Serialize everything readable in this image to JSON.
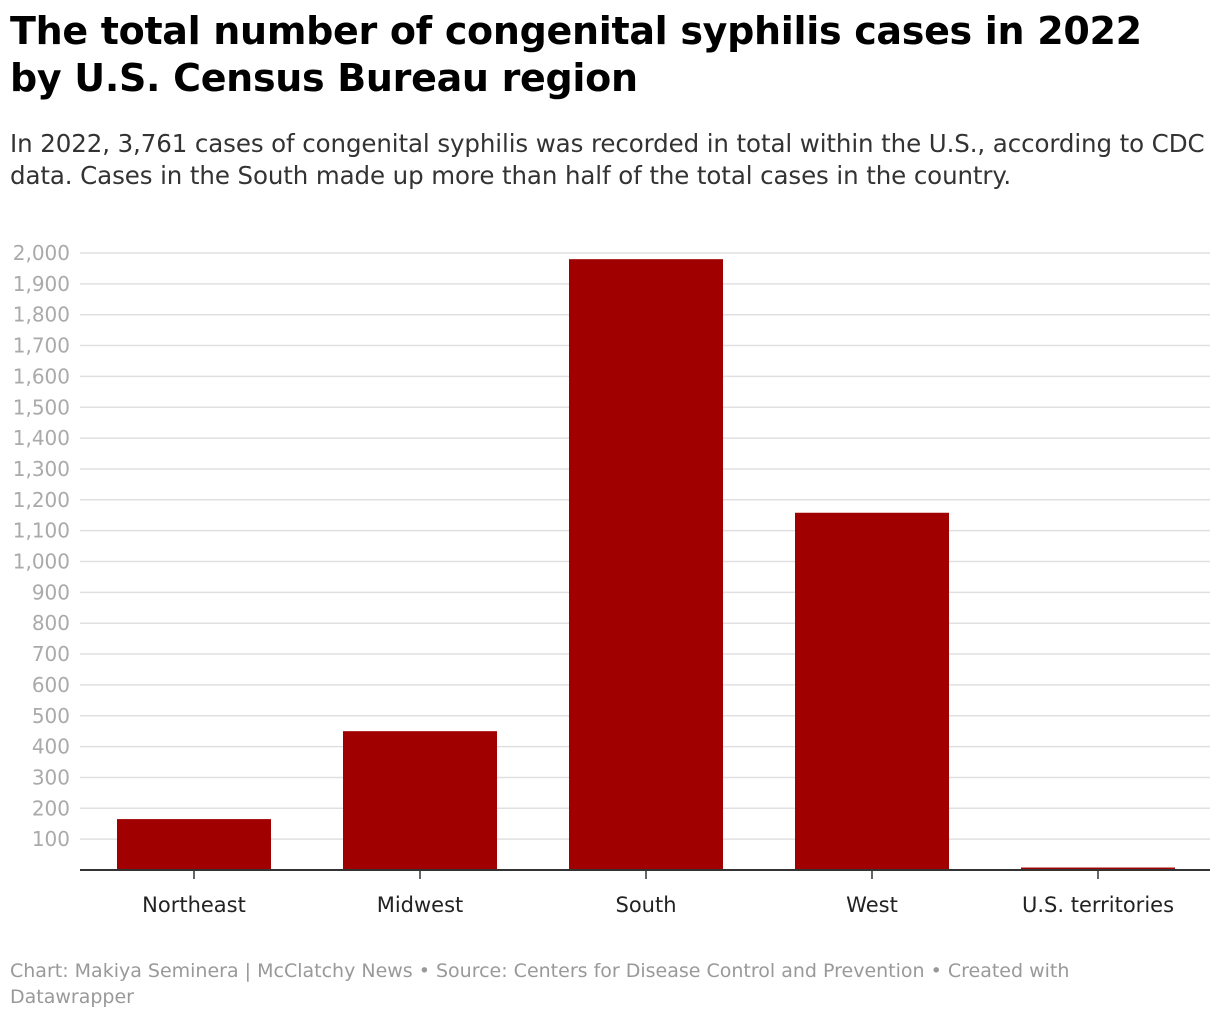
{
  "header": {
    "title": "The total number of congenital syphilis cases in 2022 by U.S. Census Bureau region",
    "subtitle": "In 2022, 3,761 cases of congenital syphilis was recorded in total within the U.S., according to CDC data. Cases in the South made up more than half of the total cases in the country."
  },
  "footer": {
    "credit": "Chart: Makiya Seminera | McClatchy News • Source: Centers for Disease Control and Prevention • Created with Datawrapper"
  },
  "colors": {
    "bar": "#a10000",
    "grid": "#e0e0e0",
    "axis": "#333333",
    "tick_text": "#aaaaaa",
    "category_text": "#222222"
  },
  "chart_data": {
    "type": "bar",
    "title": "The total number of congenital syphilis cases in 2022 by U.S. Census Bureau region",
    "xlabel": "",
    "ylabel": "",
    "categories": [
      "Northeast",
      "Midwest",
      "South",
      "West",
      "U.S. territories"
    ],
    "values": [
      165,
      450,
      1980,
      1158,
      8
    ],
    "ylim": [
      0,
      2000
    ],
    "yticks": [
      100,
      200,
      300,
      400,
      500,
      600,
      700,
      800,
      900,
      1000,
      1100,
      1200,
      1300,
      1400,
      1500,
      1600,
      1700,
      1800,
      1900,
      2000
    ],
    "ytick_labels": [
      "100",
      "200",
      "300",
      "400",
      "500",
      "600",
      "700",
      "800",
      "900",
      "1,000",
      "1,100",
      "1,200",
      "1,300",
      "1,400",
      "1,500",
      "1,600",
      "1,700",
      "1,800",
      "1,900",
      "2,000"
    ],
    "grid": true
  }
}
